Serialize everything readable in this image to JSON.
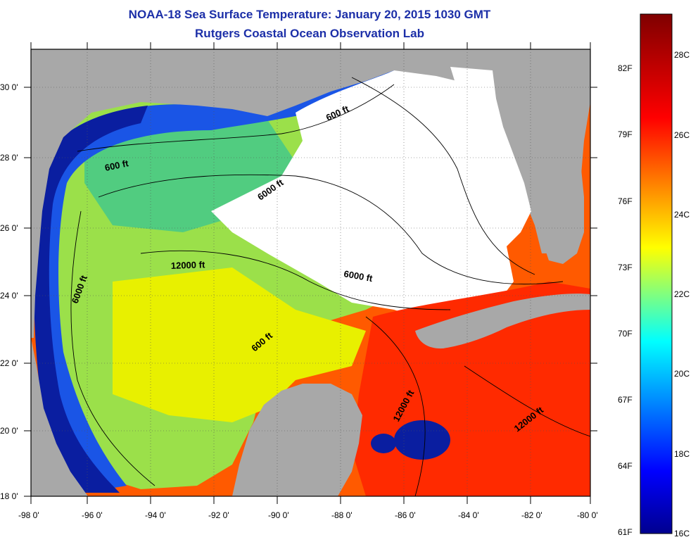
{
  "title": {
    "line1": "NOAA-18 Sea Surface Temperature:  January 20, 2015 1030 GMT",
    "line2": "Rutgers Coastal Ocean Observation Lab"
  },
  "map": {
    "lon_ticks": [
      "-98 0'",
      "-96 0'",
      "-94 0'",
      "-92 0'",
      "-90 0'",
      "-88 0'",
      "-86 0'",
      "-84 0'",
      "-82 0'",
      "-80 0'"
    ],
    "lat_ticks": [
      "30 0'",
      "28 0'",
      "26 0'",
      "24 0'",
      "22 0'",
      "20 0'",
      "18 0'"
    ],
    "contour_labels": [
      "600 ft",
      "600 ft",
      "6000 ft",
      "12000 ft",
      "6000 ft",
      "6000 ft",
      "600 ft",
      "12000 ft",
      "12000 ft"
    ],
    "colors": {
      "land": "#a8a8a8",
      "cloud": "#ffffff",
      "frame": "#000000"
    }
  },
  "colorbar": {
    "fahrenheit": [
      "82F",
      "79F",
      "76F",
      "73F",
      "70F",
      "67F",
      "64F",
      "61F"
    ],
    "celsius": [
      "28C",
      "26C",
      "24C",
      "22C",
      "20C",
      "18C",
      "16C"
    ],
    "colors": [
      "#00008f",
      "#0000ff",
      "#00ffff",
      "#ffff00",
      "#ff0000",
      "#7f0000"
    ]
  }
}
